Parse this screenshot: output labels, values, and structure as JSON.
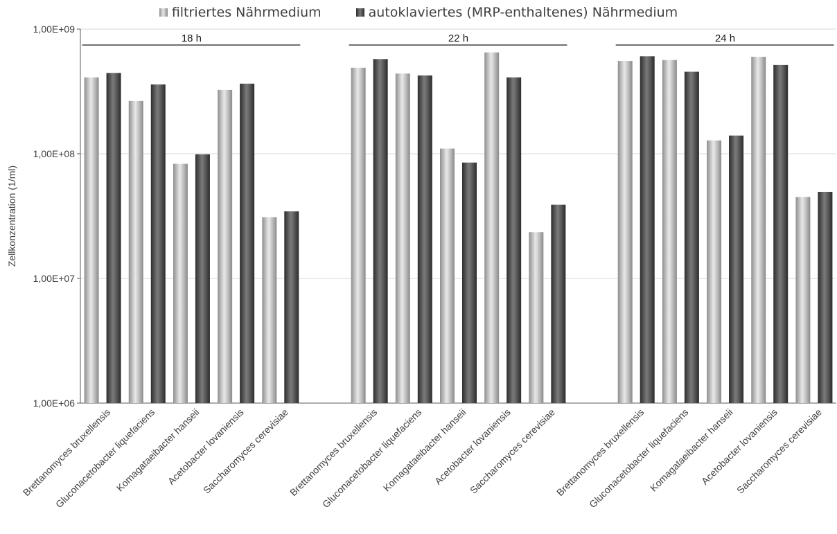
{
  "chart_data": {
    "type": "bar",
    "y_scale": "log",
    "ylabel": "Zellkonzentration (1/ml)",
    "ylim": [
      1000000,
      1000000000
    ],
    "yticks": [
      "1,00E+06",
      "1,00E+07",
      "1,00E+08",
      "1,00E+09"
    ],
    "grid": true,
    "legend_position": "top",
    "categories": [
      "Brettanomyces bruxellensis",
      "Gluconacetobacter liquefaciens",
      "Komagataeibacter hanseii",
      "Acetobacter lovaniensis",
      "Saccharomyces cerevisiae"
    ],
    "groups": [
      {
        "label": "18 h",
        "series": [
          {
            "name": "filtriertes Nährmedium",
            "values": [
              410000000,
              265000000,
              83000000,
              325000000,
              31000000
            ]
          },
          {
            "name": "autoklaviertes (MRP-enthaltenes) Nährmedium",
            "values": [
              445000000,
              360000000,
              99000000,
              365000000,
              34500000
            ]
          }
        ]
      },
      {
        "label": "22 h",
        "series": [
          {
            "name": "filtriertes Nährmedium",
            "values": [
              490000000,
              440000000,
              110000000,
              650000000,
              23500000
            ]
          },
          {
            "name": "autoklaviertes (MRP-enthaltenes) Nährmedium",
            "values": [
              575000000,
              425000000,
              85000000,
              410000000,
              39000000
            ]
          }
        ]
      },
      {
        "label": "24 h",
        "series": [
          {
            "name": "filtriertes Nährmedium",
            "values": [
              555000000,
              565000000,
              128000000,
              600000000,
              45000000
            ]
          },
          {
            "name": "autoklaviertes (MRP-enthaltenes) Nährmedium",
            "values": [
              605000000,
              455000000,
              140000000,
              515000000,
              49500000
            ]
          }
        ]
      }
    ],
    "colors": {
      "filtriert": "#c8c8c8",
      "autoklaviert": "#555555",
      "axis": "#595959",
      "grid": "#d9d9d9",
      "text": "#404040"
    }
  }
}
